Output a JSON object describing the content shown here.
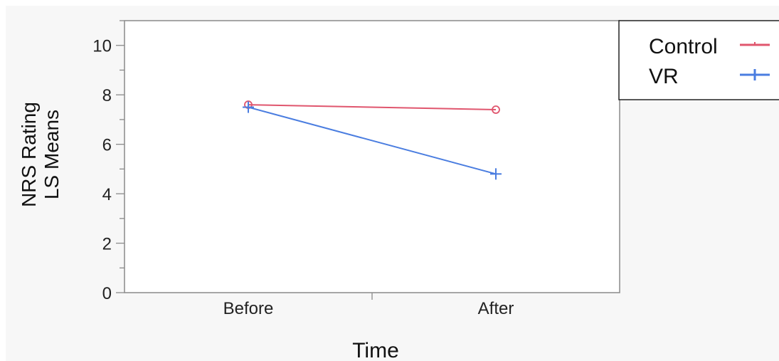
{
  "chart_data": {
    "type": "line",
    "categories": [
      "Before",
      "After"
    ],
    "xlabel": "Time",
    "ylabel_lines": [
      "NRS Rating",
      "LS Means"
    ],
    "ylim": [
      0,
      11
    ],
    "yticks": [
      0,
      2,
      4,
      6,
      8,
      10
    ],
    "grid": false,
    "legend": "top-right, outside plot",
    "series": [
      {
        "name": "Control",
        "values": [
          7.6,
          7.4
        ],
        "color": "#e0566e",
        "marker": "circle"
      },
      {
        "name": "VR",
        "values": [
          7.5,
          4.8
        ],
        "color": "#4a7de0",
        "marker": "plus"
      }
    ]
  }
}
